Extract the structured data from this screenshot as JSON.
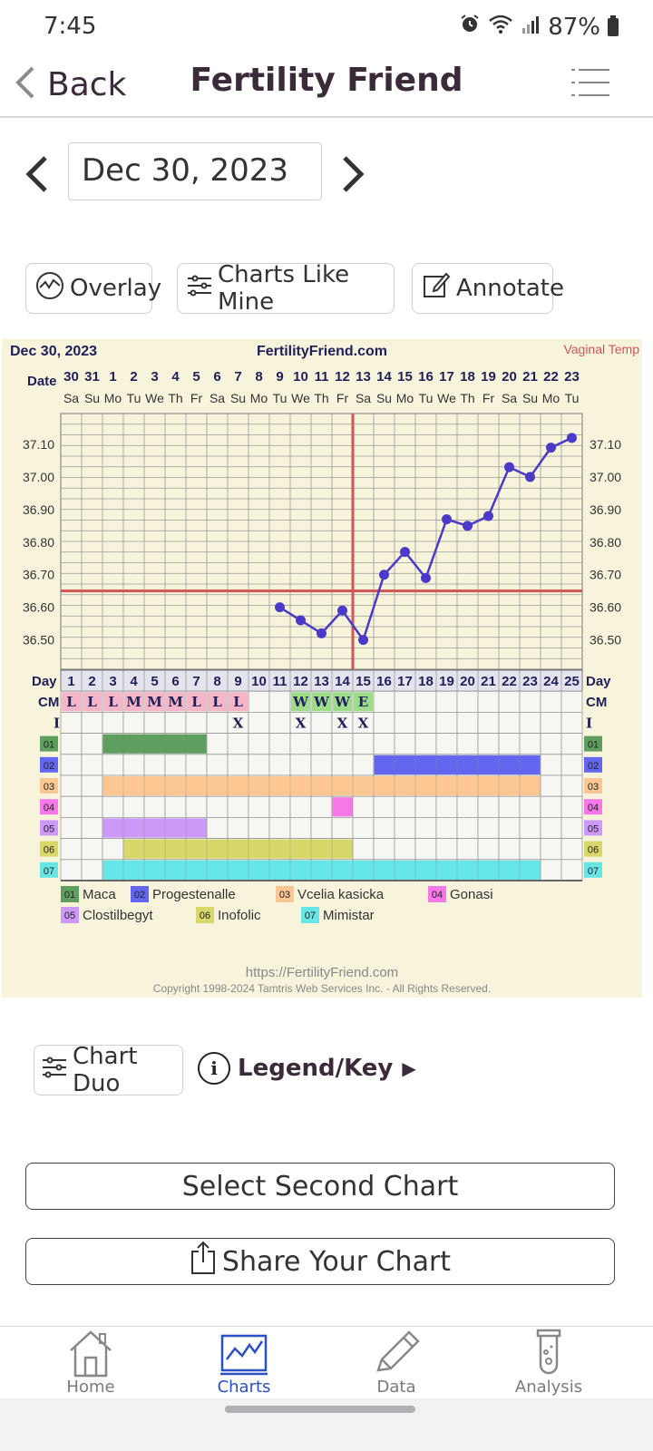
{
  "status": {
    "time": "7:45",
    "battery": "87%"
  },
  "nav": {
    "back_label": "Back",
    "title": "Fertility Friend"
  },
  "date": {
    "value": "Dec 30, 2023"
  },
  "tools": {
    "overlay": "Overlay",
    "charts_like_mine": "Charts Like Mine",
    "annotate": "Annotate"
  },
  "chart_data": {
    "type": "line",
    "title": "FertilityFriend.com",
    "header_date": "Dec 30, 2023",
    "temp_method": "Vaginal Temp",
    "date_row_label": "Date",
    "dates": [
      "30",
      "31",
      "1",
      "2",
      "3",
      "4",
      "5",
      "6",
      "7",
      "8",
      "9",
      "10",
      "11",
      "12",
      "13",
      "14",
      "15",
      "16",
      "17",
      "18",
      "19",
      "20",
      "21",
      "22",
      "23"
    ],
    "weekdays": [
      "Sa",
      "Su",
      "Mo",
      "Tu",
      "We",
      "Th",
      "Fr",
      "Sa",
      "Su",
      "Mo",
      "Tu",
      "We",
      "Th",
      "Fr",
      "Sa",
      "Su",
      "Mo",
      "Tu",
      "We",
      "Th",
      "Fr",
      "Sa",
      "Su",
      "Mo",
      "Tu"
    ],
    "y_ticks": [
      "37.10",
      "37.00",
      "36.90",
      "36.80",
      "36.70",
      "36.60",
      "36.50"
    ],
    "ylim": [
      36.42,
      37.2
    ],
    "coverline": 36.65,
    "ovulation_day": 15,
    "series": [
      {
        "values": [
          null,
          null,
          null,
          null,
          null,
          null,
          null,
          null,
          null,
          null,
          36.6,
          36.56,
          36.52,
          36.59,
          36.5,
          36.7,
          36.77,
          36.69,
          36.87,
          36.85,
          36.88,
          37.03,
          37.0,
          37.09,
          37.12
        ]
      }
    ],
    "day_row_label": "Day",
    "days": [
      "1",
      "2",
      "3",
      "4",
      "5",
      "6",
      "7",
      "8",
      "9",
      "10",
      "11",
      "12",
      "13",
      "14",
      "15",
      "16",
      "17",
      "18",
      "19",
      "20",
      "21",
      "22",
      "23",
      "24",
      "25"
    ],
    "cm_label": "CM",
    "cm": [
      "L",
      "L",
      "L",
      "M",
      "M",
      "M",
      "L",
      "L",
      "L",
      "",
      "",
      "W",
      "W",
      "W",
      "E",
      "",
      "",
      "",
      "",
      "",
      "",
      "",
      "",
      "",
      ""
    ],
    "i_label": "I",
    "intercourse": [
      "",
      "",
      "",
      "",
      "",
      "",
      "",
      "",
      "X",
      "",
      "",
      "X",
      "",
      "X",
      "X",
      "",
      "",
      "",
      "",
      "",
      "",
      "",
      "",
      "",
      ""
    ],
    "meds": [
      {
        "code": "01",
        "name": "Maca",
        "color": "#5e9e5e",
        "start": 3,
        "end": 7
      },
      {
        "code": "02",
        "name": "Progestenalle",
        "color": "#6366f0",
        "start": 16,
        "end": 23
      },
      {
        "code": "03",
        "name": "Vcelia kasicka",
        "color": "#fcc792",
        "start": 3,
        "end": 23
      },
      {
        "code": "04",
        "name": "Gonasi",
        "color": "#f777e8",
        "start": 14,
        "end": 14
      },
      {
        "code": "05",
        "name": "Clostilbegyt",
        "color": "#cc99f8",
        "start": 3,
        "end": 7
      },
      {
        "code": "06",
        "name": "Inofolic",
        "color": "#d8d86a",
        "start": 4,
        "end": 14
      },
      {
        "code": "07",
        "name": "Mimistar",
        "color": "#66e6e6",
        "start": 3,
        "end": 23
      }
    ],
    "footer_url": "https://FertilityFriend.com",
    "copyright": "Copyright 1998-2024 Tamtris Web Services Inc. - All Rights Reserved."
  },
  "actions": {
    "chart_duo": "Chart Duo",
    "legend_key": "Legend/Key",
    "select_second": "Select Second Chart",
    "share": "Share Your Chart"
  },
  "tabs": [
    {
      "label": "Home",
      "active": false
    },
    {
      "label": "Charts",
      "active": true
    },
    {
      "label": "Data",
      "active": false
    },
    {
      "label": "Analysis",
      "active": false
    }
  ],
  "colors": {
    "accent": "#2b4fc4",
    "line": "#4a3ac8",
    "coverline": "#d05555",
    "chart_bg": "#f8f4dc"
  }
}
